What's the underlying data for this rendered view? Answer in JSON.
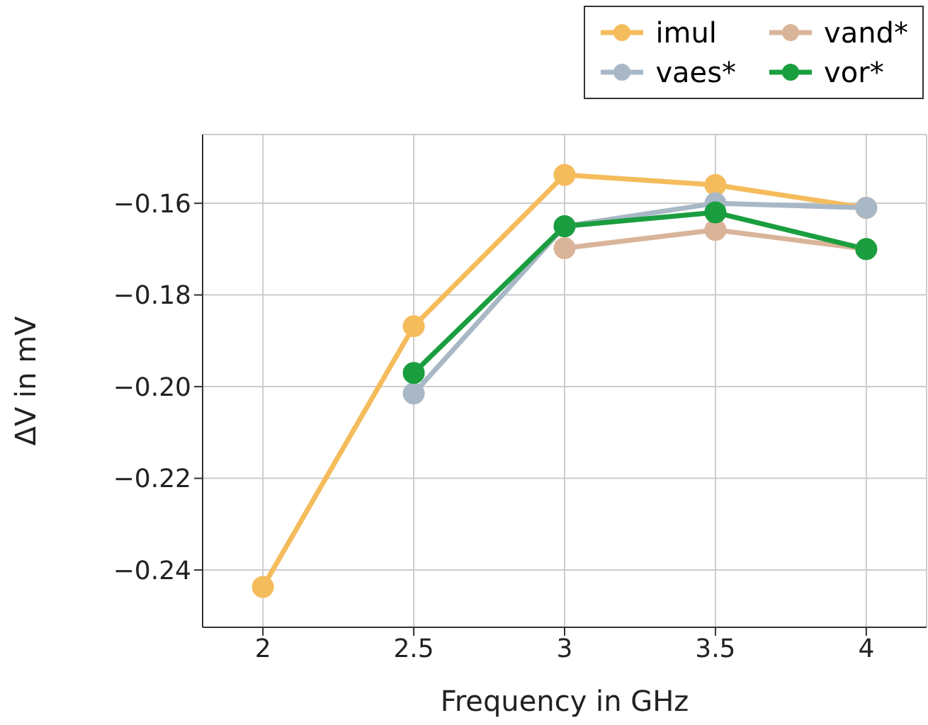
{
  "chart_data": {
    "type": "line",
    "xlabel": "Frequency in GHz",
    "ylabel": "ΔV in mV",
    "x": [
      2,
      2.5,
      3,
      3.5,
      4
    ],
    "series": [
      {
        "name": "imul",
        "color": "#f5bc5c",
        "values": [
          -0.2437,
          -0.1868,
          -0.1538,
          -0.156,
          -0.161
        ]
      },
      {
        "name": "vand*",
        "color": "#d9b499",
        "values": [
          null,
          null,
          -0.1698,
          -0.1658,
          -0.17
        ]
      },
      {
        "name": "vaes*",
        "color": "#a9b8c6",
        "values": [
          null,
          -0.2015,
          -0.165,
          -0.16,
          -0.161
        ]
      },
      {
        "name": "vor*",
        "color": "#1a9e3f",
        "values": [
          null,
          -0.197,
          -0.165,
          -0.162,
          -0.17
        ]
      }
    ],
    "xlim": [
      1.8,
      4.2
    ],
    "xticks": [
      2,
      {
        "value": 2.5,
        "label": "2.5"
      },
      3,
      {
        "value": 3.5,
        "label": "3.5"
      },
      4
    ],
    "ylim": [
      -0.2525,
      -0.145
    ],
    "yticks": [
      {
        "value": -0.24,
        "label": "−0.24"
      },
      {
        "value": -0.22,
        "label": "−0.22"
      },
      {
        "value": -0.2,
        "label": "−0.20"
      },
      {
        "value": -0.18,
        "label": "−0.18"
      },
      {
        "value": -0.16,
        "label": "−0.16"
      }
    ],
    "grid": true,
    "legend": "top right",
    "marker": "circle",
    "line_style": "solid"
  }
}
